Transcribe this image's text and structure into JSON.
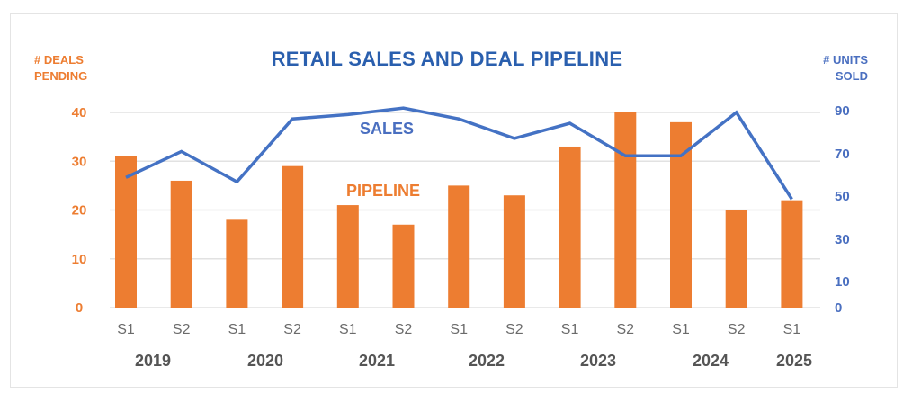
{
  "chart_data": {
    "type": "bar+line",
    "title": "RETAIL SALES AND DEAL PIPELINE",
    "categories": [
      "S1",
      "S2",
      "S1",
      "S2",
      "S1",
      "S2",
      "S1",
      "S2",
      "S1",
      "S2",
      "S1",
      "S2",
      "S1"
    ],
    "years": [
      {
        "label": "2019",
        "span": [
          0,
          1
        ]
      },
      {
        "label": "2020",
        "span": [
          2,
          3
        ]
      },
      {
        "label": "2021",
        "span": [
          4,
          5
        ]
      },
      {
        "label": "2022",
        "span": [
          6,
          7
        ]
      },
      {
        "label": "2023",
        "span": [
          8,
          9
        ]
      },
      {
        "label": "2024",
        "span": [
          10,
          11
        ]
      },
      {
        "label": "2025",
        "span": [
          12,
          12
        ]
      }
    ],
    "series": [
      {
        "name": "PIPELINE",
        "type": "bar",
        "axis": "left",
        "color": "#ed7d31",
        "values": [
          31,
          26,
          18,
          29,
          21,
          17,
          25,
          23,
          33,
          40,
          38,
          20,
          22
        ]
      },
      {
        "name": "SALES",
        "type": "line",
        "axis": "right",
        "color": "#4472c4",
        "values": [
          60,
          72,
          58,
          87,
          89,
          92,
          87,
          78,
          85,
          70,
          70,
          90,
          50
        ]
      }
    ],
    "left_axis": {
      "label_line1": "# DEALS",
      "label_line2": "PENDING",
      "ticks": [
        0,
        10,
        20,
        30,
        40
      ],
      "range": [
        0,
        40
      ],
      "color": "#ed7d31"
    },
    "right_axis": {
      "label_line1": "# UNITS",
      "label_line2": "SOLD",
      "ticks": [
        0,
        10,
        30,
        50,
        70,
        90
      ],
      "range": [
        0,
        90
      ],
      "color": "#4a6fc0"
    },
    "grid": true,
    "legend": "inline labels"
  }
}
